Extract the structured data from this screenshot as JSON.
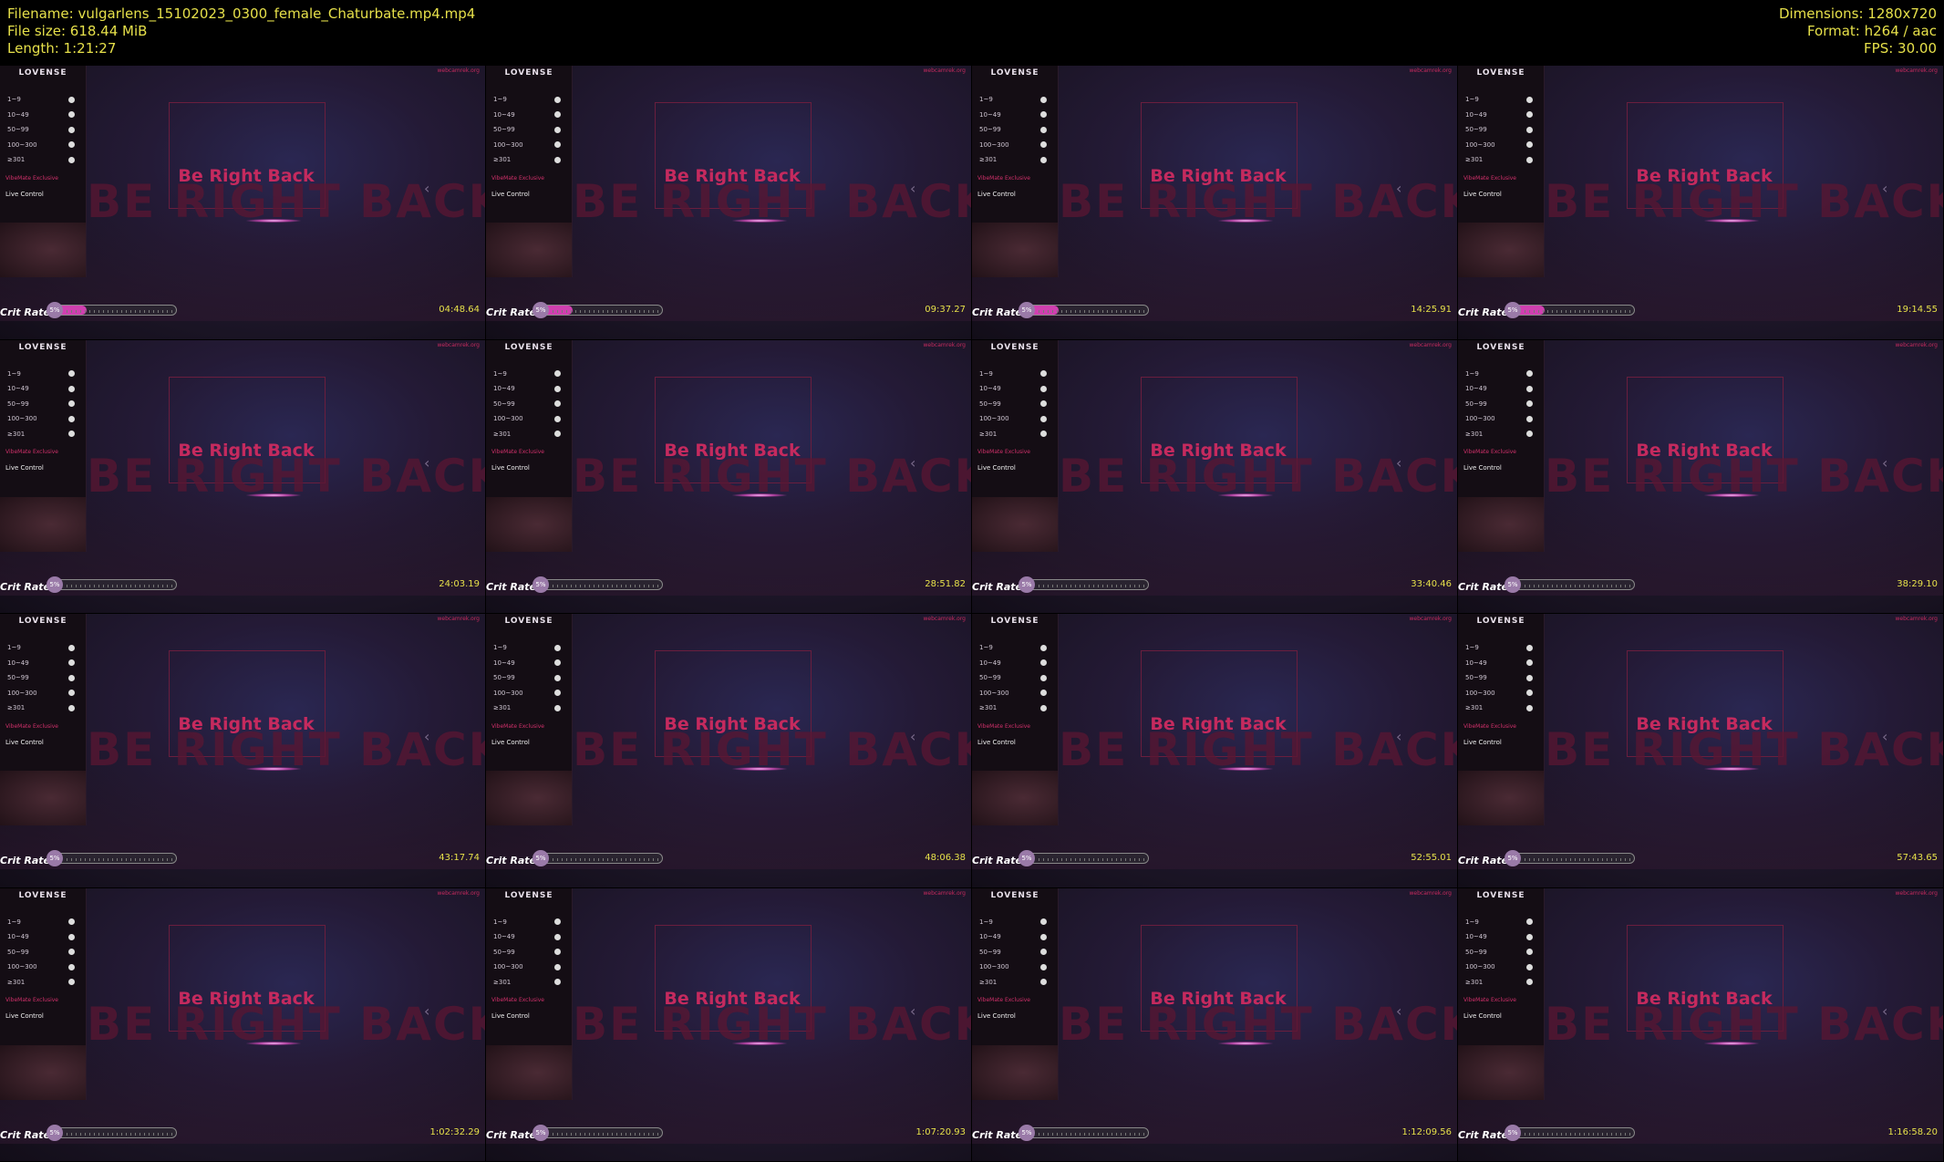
{
  "header": {
    "filename": "Filename: vulgarlens_15102023_0300_female_Chaturbate.mp4.mp4",
    "filesize": "File size: 618.44 MiB",
    "length": "Length: 1:21:27",
    "dimensions": "Dimensions: 1280x720",
    "format": "Format: h264 / aac",
    "fps": "FPS: 30.00"
  },
  "tile_common": {
    "brand": "LOVENSE",
    "rows": [
      "1~9",
      "10~49",
      "50~99",
      "100~300",
      "≥301"
    ],
    "vibemate": "VibeMate Exclusive",
    "live": "Live Control",
    "brb": "Be Right Back",
    "brb_bg": "BE RIGHT BACK",
    "watermark": "webcamrek.org",
    "crit": "Crit Rate",
    "percent": "5%"
  },
  "timestamps": [
    "04:48.64",
    "09:37.27",
    "14:25.91",
    "19:14.55",
    "24:03.19",
    "28:51.82",
    "33:40.46",
    "38:29.10",
    "43:17.74",
    "48:06.38",
    "52:55.01",
    "57:43.65",
    "1:02:32.29",
    "1:07:20.93",
    "1:12:09.56",
    "1:16:58.20"
  ],
  "slider_fill_fraction": [
    0.3,
    0.3,
    0.3,
    0.3,
    0,
    0,
    0,
    0,
    0,
    0,
    0,
    0,
    0,
    0,
    0,
    0
  ],
  "colors": {
    "header_text": "#e6e04a",
    "accent": "#c52a5e"
  }
}
